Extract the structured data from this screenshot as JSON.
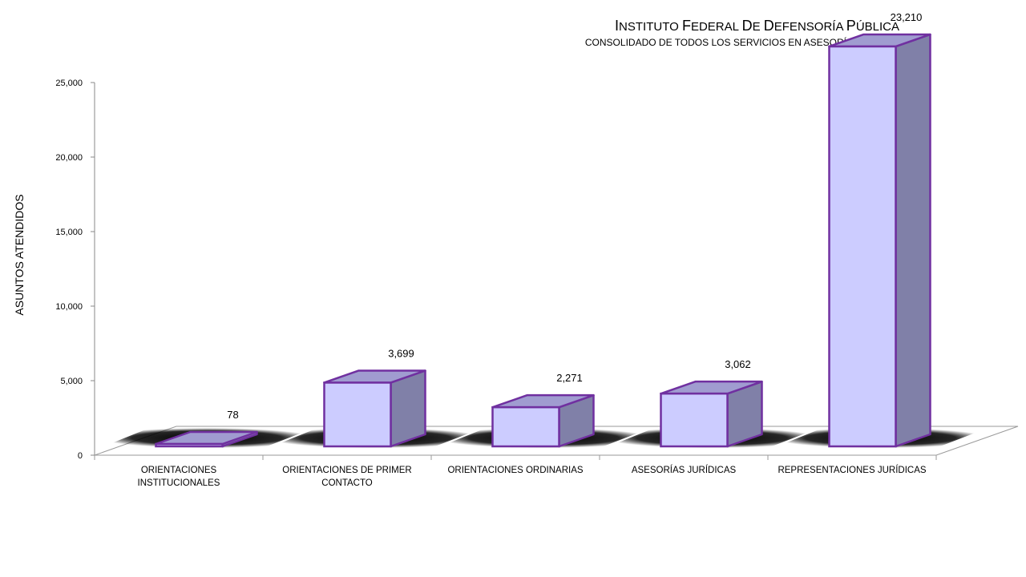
{
  "chart_data": {
    "type": "bar",
    "title": "Instituto Federal de Defensoría Pública",
    "subtitle": "CONSOLIDADO DE TODOS LOS SERVICIOS  EN ASESORÍA JURÍDICA",
    "ylabel": "ASUNTOS ATENDIDOS",
    "xlabel": "",
    "ylim": [
      0,
      25000
    ],
    "yticks": [
      0,
      5000,
      10000,
      15000,
      20000,
      25000
    ],
    "ytick_labels": [
      "0",
      "5,000",
      "10,000",
      "15,000",
      "20,000",
      "25,000"
    ],
    "categories": [
      [
        "ORIENTACIONES",
        "INSTITUCIONALES"
      ],
      [
        "ORIENTACIONES DE PRIMER",
        "CONTACTO"
      ],
      [
        "ORIENTACIONES ORDINARIAS"
      ],
      [
        "ASESORÍAS JURÍDICAS"
      ],
      [
        "REPRESENTACIONES JURÍDICAS"
      ]
    ],
    "values": [
      78,
      3699,
      2271,
      3062,
      23210
    ],
    "data_labels": [
      "78",
      "3,699",
      "2,271",
      "3,062",
      "23,210"
    ],
    "style": "3d-column",
    "colors": {
      "bar_front": "#CCCCFF",
      "bar_top": "#A09CD0",
      "bar_side": "#8080A8",
      "bar_stroke": "#7030A0",
      "floor_shadow": "#000000"
    }
  }
}
